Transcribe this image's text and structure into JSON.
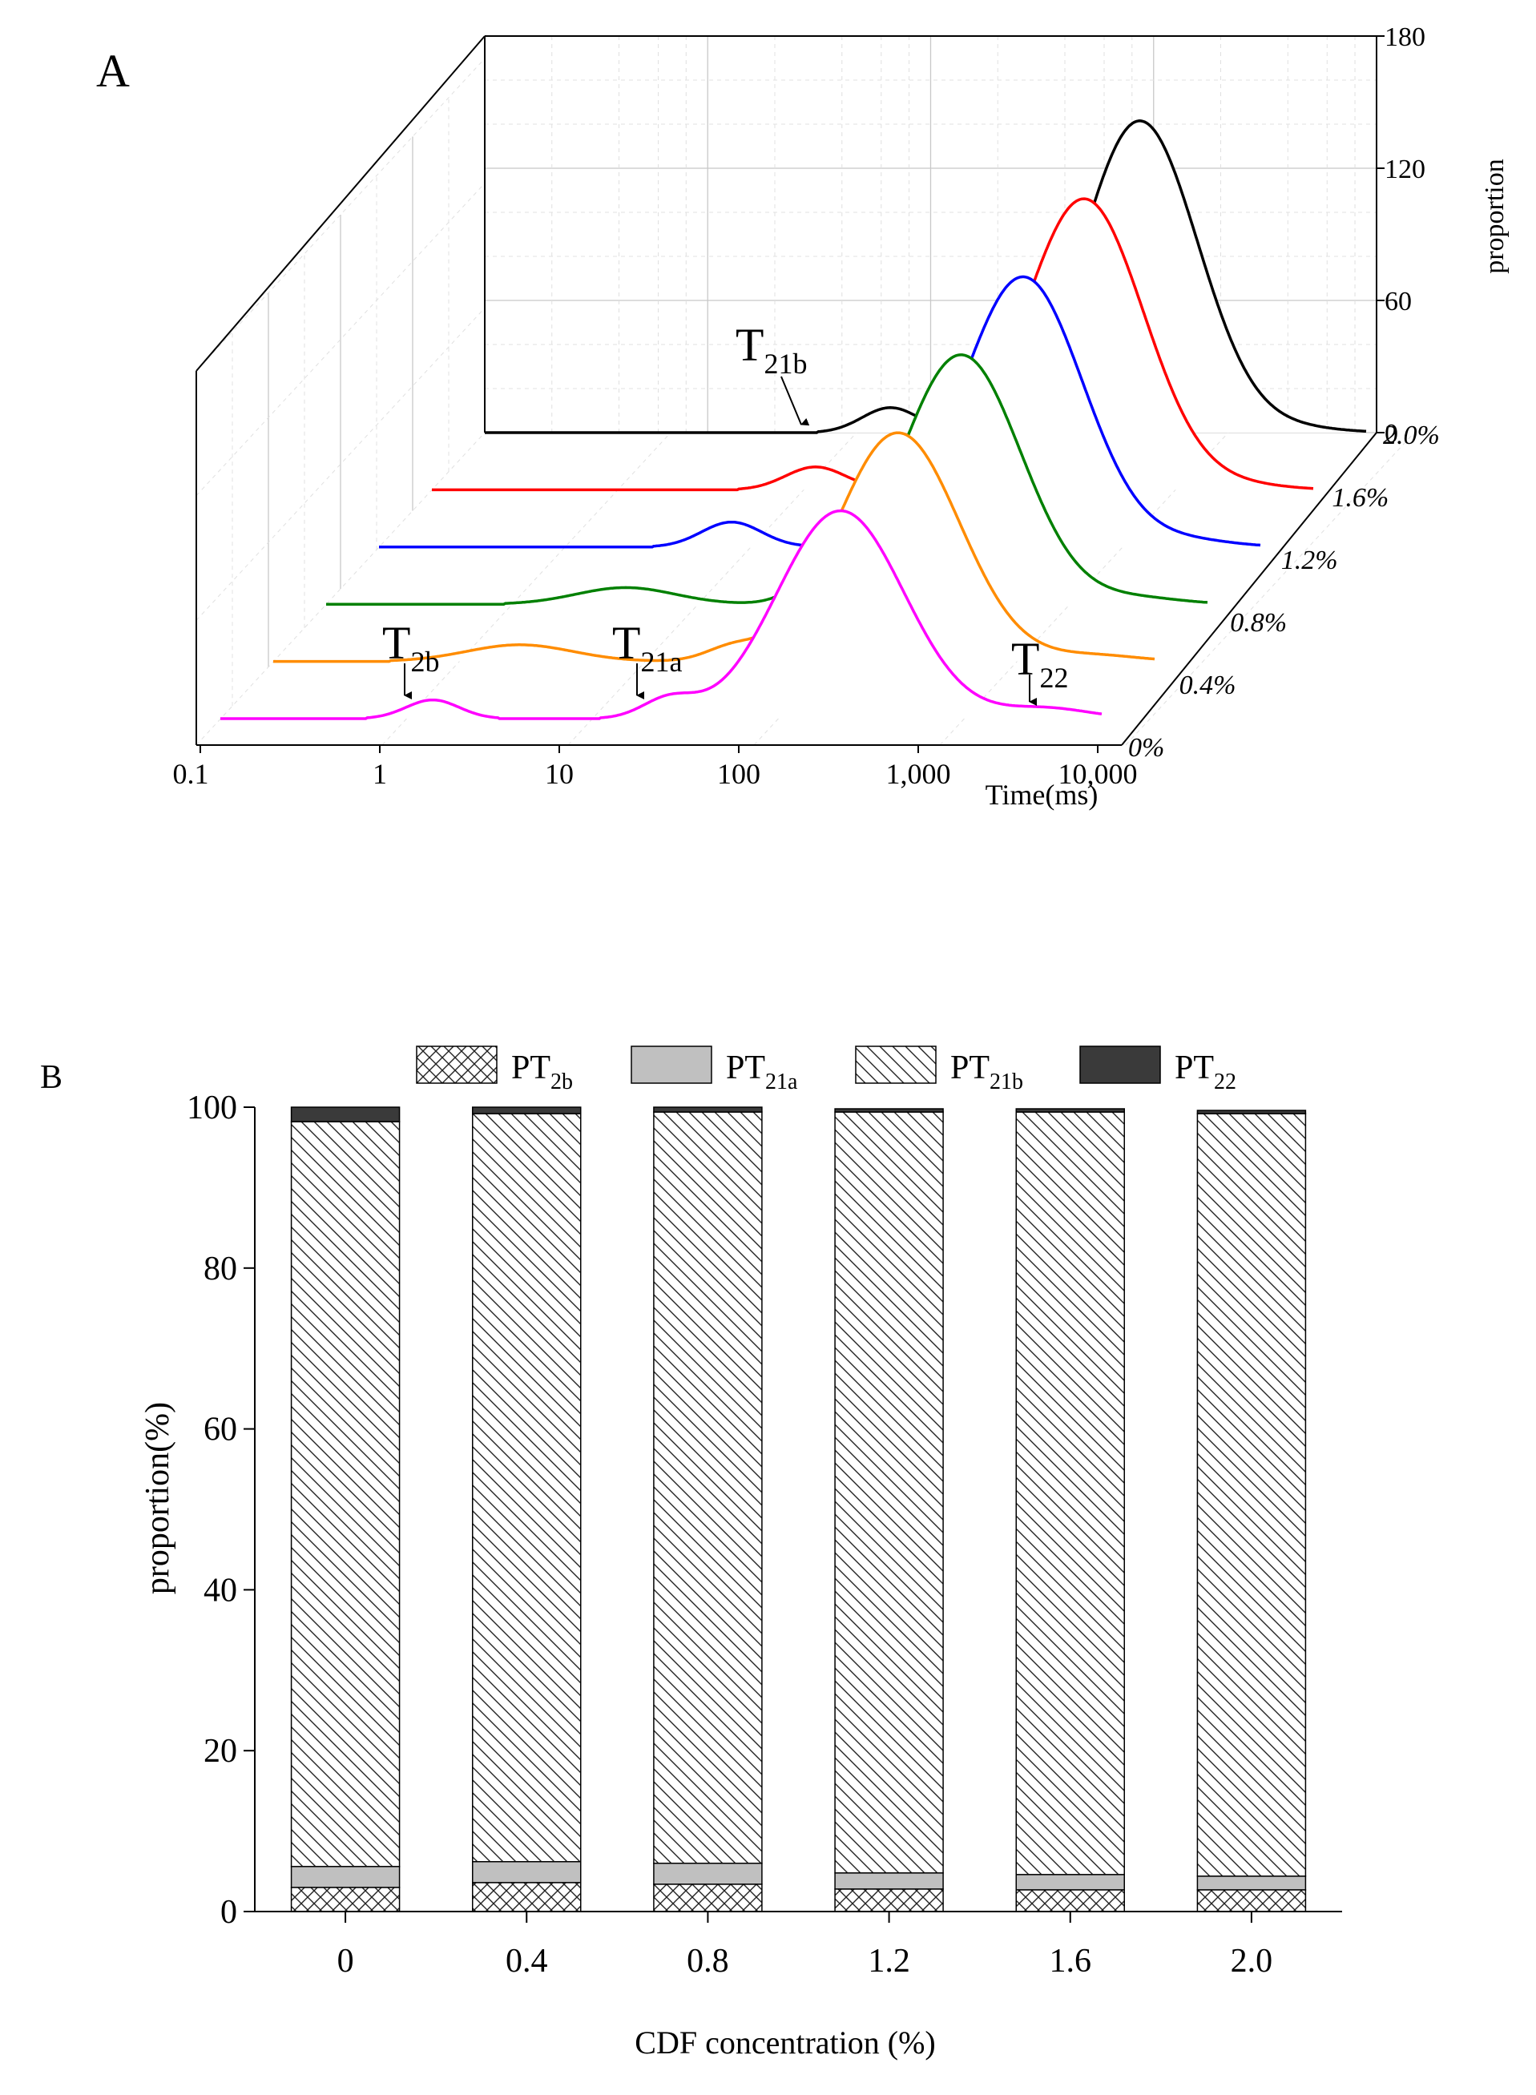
{
  "chart_data": [
    {
      "panel": "A",
      "type": "line",
      "title": "",
      "xlabel": "Time(ms)",
      "ylabel": "proportion",
      "x_scale": "log",
      "xlim": [
        0.1,
        10000
      ],
      "x_ticks": [
        "0.1",
        "1",
        "10",
        "100",
        "1,000",
        "10,000"
      ],
      "zlim": [
        0,
        180
      ],
      "z_ticks": [
        "0",
        "60",
        "120",
        "180"
      ],
      "depth_ticks": [
        "0%",
        "0.4%",
        "0.8%",
        "1.2%",
        "1.6%",
        "2.0%"
      ],
      "series": [
        {
          "name": "0%",
          "color": "#ff00ff",
          "peaks": [
            {
              "t": 1.6,
              "a": 9,
              "w": 0.15
            },
            {
              "t": 35,
              "a": 9,
              "w": 0.15
            },
            {
              "t": 330,
              "a": 100,
              "w": 0.36
            },
            {
              "t": 4800,
              "a": 5,
              "w": 0.25
            }
          ]
        },
        {
          "name": "0.4%",
          "color": "#ff8c00",
          "peaks": [
            {
              "t": 2.5,
              "a": 8,
              "w": 0.3
            },
            {
              "t": 40,
              "a": 6,
              "w": 0.15
            },
            {
              "t": 350,
              "a": 110,
              "w": 0.35
            },
            {
              "t": 4500,
              "a": 3,
              "w": 0.25
            }
          ]
        },
        {
          "name": "0.8%",
          "color": "#008000",
          "peaks": [
            {
              "t": 5,
              "a": 8,
              "w": 0.28
            },
            {
              "t": 60,
              "a": 8,
              "w": 0.15
            },
            {
              "t": 400,
              "a": 120,
              "w": 0.34
            },
            {
              "t": 4000,
              "a": 3,
              "w": 0.25
            }
          ]
        },
        {
          "name": "1.2%",
          "color": "#0000ff",
          "peaks": [
            {
              "t": 10,
              "a": 12,
              "w": 0.17
            },
            {
              "t": 120,
              "a": 4,
              "w": 0.15
            },
            {
              "t": 450,
              "a": 130,
              "w": 0.34
            },
            {
              "t": 4000,
              "a": 3,
              "w": 0.25
            }
          ]
        },
        {
          "name": "1.6%",
          "color": "#ff0000",
          "peaks": [
            {
              "t": 15,
              "a": 11,
              "w": 0.17
            },
            {
              "t": 150,
              "a": 4,
              "w": 0.15
            },
            {
              "t": 500,
              "a": 140,
              "w": 0.34
            },
            {
              "t": 4000,
              "a": 2,
              "w": 0.25
            }
          ]
        },
        {
          "name": "2.0%",
          "color": "#000000",
          "peaks": [
            {
              "t": 20,
              "a": 12,
              "w": 0.16
            },
            {
              "t": 520,
              "a": 150,
              "w": 0.33
            },
            {
              "t": 4000,
              "a": 2,
              "w": 0.25
            }
          ]
        }
      ],
      "annotations": [
        {
          "main": "T",
          "sub": "2b"
        },
        {
          "main": "T",
          "sub": "21a"
        },
        {
          "main": "T",
          "sub": "21b"
        },
        {
          "main": "T",
          "sub": "22"
        }
      ]
    },
    {
      "panel": "B",
      "type": "bar",
      "stacked": true,
      "title": "",
      "xlabel": "CDF concentration (%)",
      "ylabel": "proportion(%)",
      "ylim": [
        0,
        100
      ],
      "y_ticks": [
        "0",
        "20",
        "40",
        "60",
        "80",
        "100"
      ],
      "categories": [
        "0",
        "0.4",
        "0.8",
        "1.2",
        "1.6",
        "2.0"
      ],
      "series": [
        {
          "name": "PT",
          "sub": "2b",
          "pattern": "crosshatch",
          "values": [
            3.0,
            3.6,
            3.4,
            2.8,
            2.7,
            2.7
          ]
        },
        {
          "name": "PT",
          "sub": "21a",
          "pattern": "gray",
          "values": [
            2.6,
            2.6,
            2.6,
            2.0,
            1.9,
            1.7
          ]
        },
        {
          "name": "PT",
          "sub": "21b",
          "pattern": "diagonal",
          "values": [
            92.6,
            93.0,
            93.4,
            94.6,
            94.8,
            94.8
          ]
        },
        {
          "name": "PT",
          "sub": "22",
          "pattern": "dark",
          "values": [
            1.8,
            0.8,
            0.6,
            0.4,
            0.4,
            0.4
          ]
        }
      ],
      "legend_position": "top"
    }
  ],
  "panel_labels": {
    "a": "A",
    "b": "B"
  }
}
